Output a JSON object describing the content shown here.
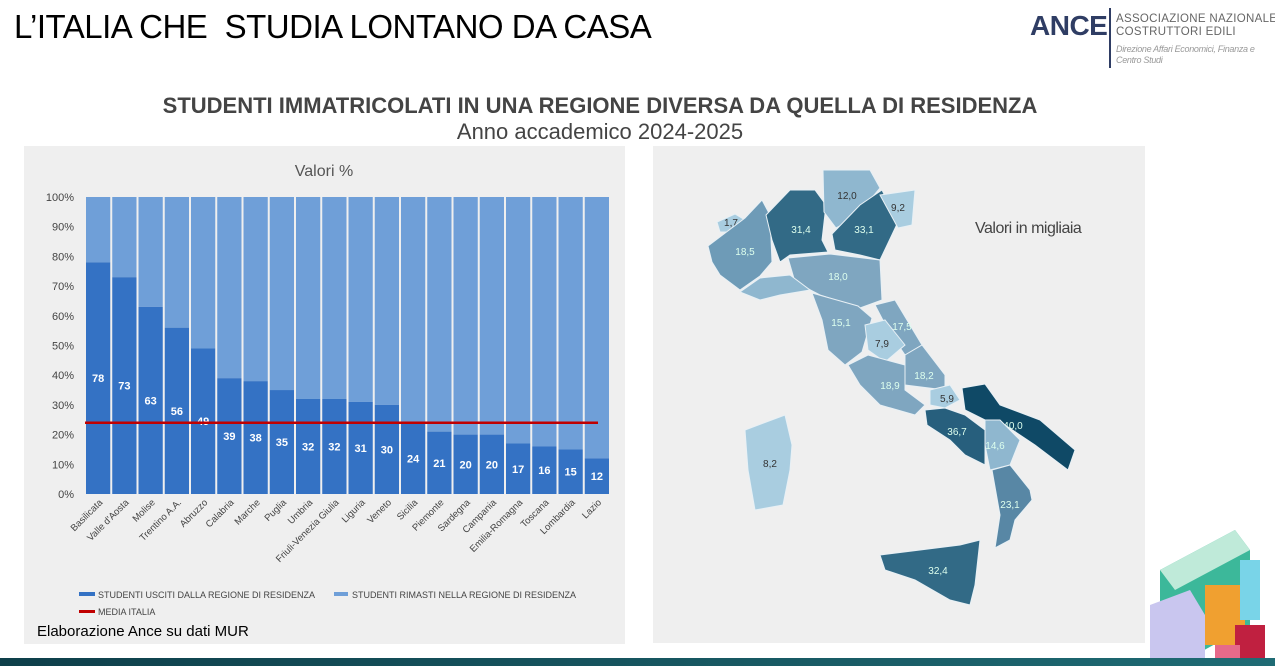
{
  "header": {
    "title": "L’ITALIA CHE  STUDIA LONTANO DA CASA",
    "logo": {
      "name": "ANCE",
      "line1": "ASSOCIAZIONE NAZIONALE",
      "line2": "COSTRUTTORI EDILI",
      "line3": "Direzione Affari Economici, Finanza e",
      "line4": "Centro Studi"
    }
  },
  "subtitle": "STUDENTI IMMATRICOLATI IN UNA REGIONE DIVERSA DA QUELLA DI RESIDENZA",
  "subtitle2": "Anno accademico 2024-2025",
  "source": "Elaborazione Ance su dati MUR",
  "colors": {
    "out": "#3472c4",
    "stayed": "#6f9fd8",
    "media": "#c00000"
  },
  "chart_data": {
    "type": "bar",
    "stacked": true,
    "title": "Valori %",
    "categories": [
      "Basilicata",
      "Valle d'Aosta",
      "Molise",
      "Trentino A.A.",
      "Abruzzo",
      "Calabria",
      "Marche",
      "Puglia",
      "Umbria",
      "Friuli-Venezia Giulia",
      "Liguria",
      "Veneto",
      "Sicilia",
      "Piemonte",
      "Sardegna",
      "Campania",
      "Emilia-Romagna",
      "Toscana",
      "Lombardia",
      "Lazio"
    ],
    "series": [
      {
        "name": "STUDENTI USCITI DALLA REGIONE DI RESIDENZA",
        "values": [
          78,
          73,
          63,
          56,
          49,
          39,
          38,
          35,
          32,
          32,
          31,
          30,
          24,
          21,
          20,
          20,
          17,
          16,
          15,
          12
        ]
      },
      {
        "name": "STUDENTI RIMASTI NELLA REGIONE DI RESIDENZA",
        "values": [
          22,
          27,
          37,
          44,
          51,
          61,
          62,
          65,
          68,
          68,
          69,
          70,
          76,
          79,
          80,
          80,
          83,
          84,
          85,
          88
        ]
      }
    ],
    "reference_line": {
      "name": "MEDIA ITALIA",
      "value": 24
    },
    "yticks": [
      "0%",
      "10%",
      "20%",
      "30%",
      "40%",
      "50%",
      "60%",
      "70%",
      "80%",
      "90%",
      "100%"
    ],
    "ylim": [
      0,
      100
    ],
    "legend": "bottom"
  },
  "map": {
    "title": "Valori in migliaia",
    "regions": [
      {
        "name": "Valle d'Aosta",
        "value": "1,7"
      },
      {
        "name": "Piemonte",
        "value": "18,5"
      },
      {
        "name": "Lombardia",
        "value": "31,4"
      },
      {
        "name": "Trentino A.A.",
        "value": "12,0"
      },
      {
        "name": "Veneto",
        "value": "33,1"
      },
      {
        "name": "Friuli-Venezia Giulia",
        "value": "9,2"
      },
      {
        "name": "Emilia-Romagna",
        "value": "18,0"
      },
      {
        "name": "Toscana",
        "value": "15,1"
      },
      {
        "name": "Marche",
        "value": "17,5"
      },
      {
        "name": "Umbria",
        "value": "7,9"
      },
      {
        "name": "Abruzzo",
        "value": "18,2"
      },
      {
        "name": "Lazio",
        "value": "18,9"
      },
      {
        "name": "Molise",
        "value": "5,9"
      },
      {
        "name": "Campania",
        "value": "36,7"
      },
      {
        "name": "Puglia",
        "value": "40,0"
      },
      {
        "name": "Basilicata",
        "value": "14,6"
      },
      {
        "name": "Calabria",
        "value": "23,1"
      },
      {
        "name": "Sicilia",
        "value": "32,4"
      },
      {
        "name": "Sardegna",
        "value": "8,2"
      }
    ]
  }
}
